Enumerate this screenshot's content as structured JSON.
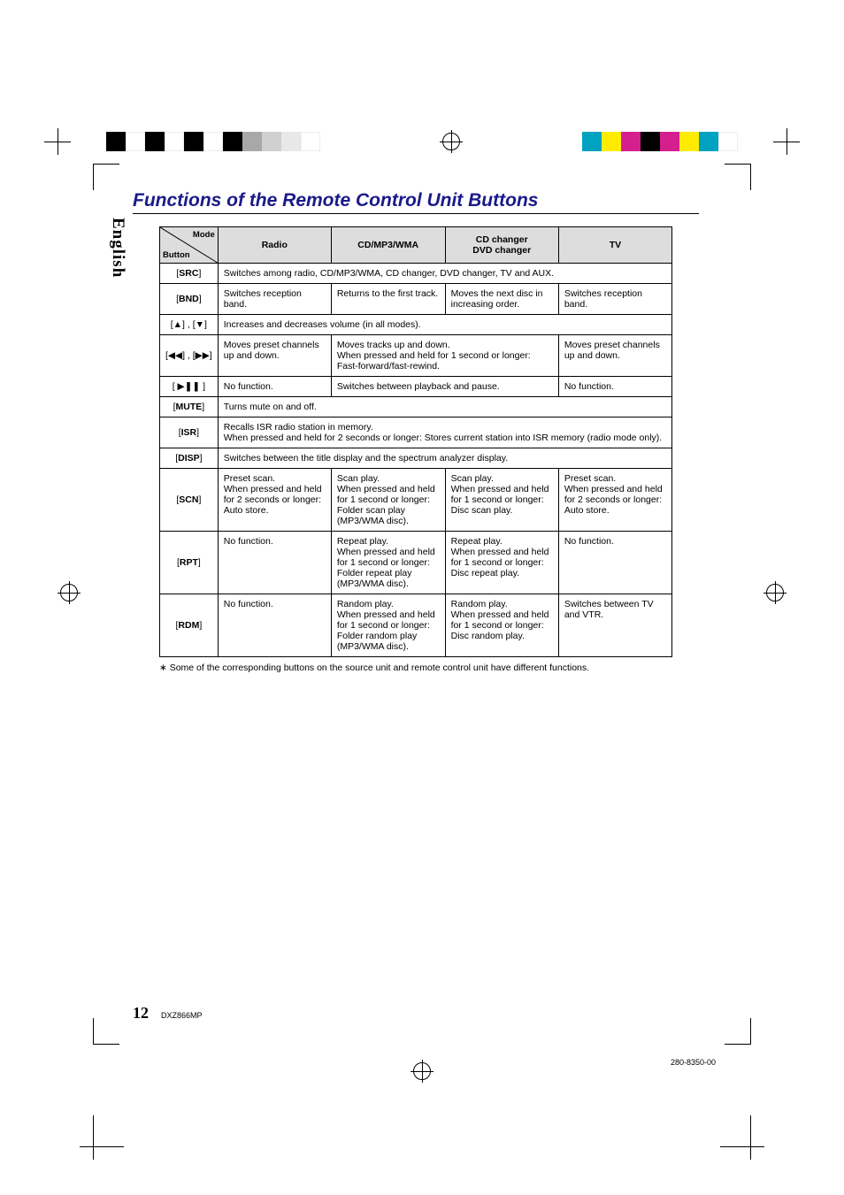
{
  "colorbar_top_left": [
    "#000000",
    "#ffffff",
    "#000000",
    "#ffffff",
    "#000000",
    "#ffffff",
    "#000000",
    "#a8a8a8",
    "#d0d0d0",
    "#e8e8e8",
    "#ffffff"
  ],
  "colorbar_top_right": [
    "#00a2c2",
    "#ffec00",
    "#d61f8e",
    "#000000",
    "#d61f8e",
    "#ffec00",
    "#00a2c2",
    "#ffffff"
  ],
  "english_label": "English",
  "section_title": "Functions of the Remote Control Unit Buttons",
  "headers": {
    "mode": "Mode",
    "button": "Button",
    "radio": "Radio",
    "cd": "CD/MP3/WMA",
    "changer": "CD changer\nDVD changer",
    "tv": "TV"
  },
  "rows": [
    {
      "btn": "[SRC]",
      "cells": [
        "Switches among radio, CD/MP3/WMA, CD changer, DVD changer, TV and AUX."
      ],
      "span": 4
    },
    {
      "btn": "[BND]",
      "cells": [
        "Switches reception band.",
        "Returns to the first track.",
        "Moves the next disc in increasing order.",
        "Switches reception band."
      ]
    },
    {
      "btn": "[▲] , [▼]",
      "cells": [
        "Increases and decreases volume (in all modes)."
      ],
      "span": 4
    },
    {
      "btn": "[◀◀] , [▶▶]",
      "cells": [
        "Moves preset channels up and down.",
        "Moves tracks up and down.\nWhen pressed and held for 1 second or longer: Fast-forward/fast-rewind.",
        "",
        "Moves preset channels up and down."
      ],
      "merge23": true
    },
    {
      "btn": "[ ▶❚❚ ]",
      "cells": [
        "No function.",
        "Switches between playback and pause.",
        "",
        "No function."
      ],
      "merge23": true
    },
    {
      "btn": "[MUTE]",
      "cells": [
        "Turns mute on and off."
      ],
      "span": 4
    },
    {
      "btn": "[ISR]",
      "cells": [
        "Recalls ISR radio station in memory.\nWhen pressed and held for 2 seconds or longer: Stores current station into ISR memory (radio mode only)."
      ],
      "span": 4
    },
    {
      "btn": "[DISP]",
      "cells": [
        "Switches between the title display and the spectrum analyzer display."
      ],
      "span": 4
    },
    {
      "btn": "[SCN]",
      "cells": [
        "Preset scan.\nWhen pressed and held for 2 seconds or longer:\nAuto store.",
        "Scan play.\nWhen pressed and held for 1 second or longer:\nFolder scan play (MP3/WMA disc).",
        "Scan play.\nWhen pressed and held for 1 second or longer:\nDisc scan play.",
        "Preset scan.\nWhen pressed and held for 2 seconds or longer:\nAuto store."
      ]
    },
    {
      "btn": "[RPT]",
      "cells": [
        "No function.",
        "Repeat play.\nWhen pressed and held for 1 second or longer:\nFolder repeat play (MP3/WMA disc).",
        "Repeat play.\nWhen pressed and held for 1 second or longer:\nDisc repeat play.",
        "No function."
      ]
    },
    {
      "btn": "[RDM]",
      "cells": [
        "No function.",
        "Random play.\nWhen pressed and held for 1 second or longer:\nFolder random play (MP3/WMA disc).",
        "Random play.\nWhen pressed and held for 1 second or longer:\nDisc random play.",
        "Switches between TV and VTR."
      ]
    }
  ],
  "footnote": "∗ Some of the corresponding buttons on the source unit and remote control unit have different functions.",
  "page_number": "12",
  "model": "DXZ866MP",
  "doc_id": "280-8350-00"
}
